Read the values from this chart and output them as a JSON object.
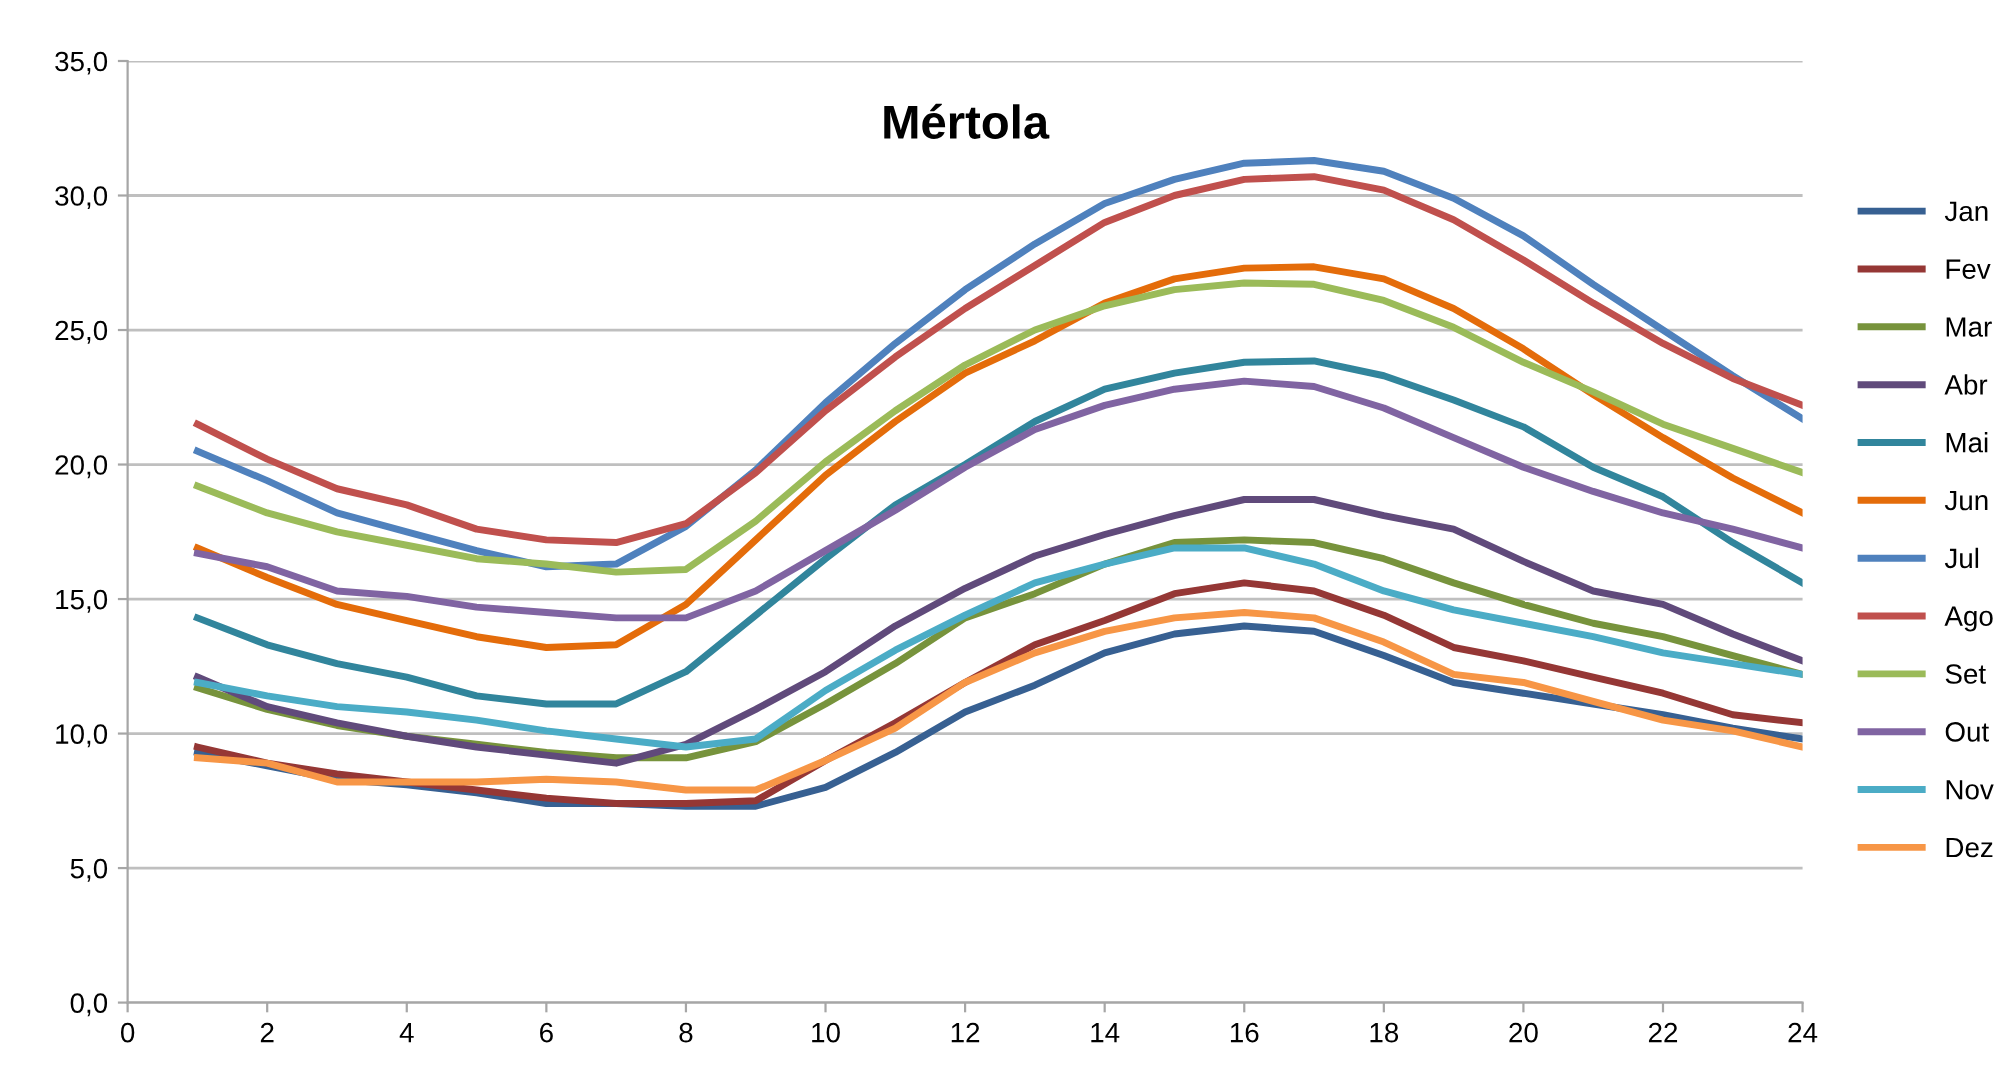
{
  "chart_data": {
    "type": "line",
    "title": "Mértola",
    "x": [
      1,
      2,
      3,
      4,
      5,
      6,
      7,
      8,
      9,
      10,
      11,
      12,
      13,
      14,
      15,
      16,
      17,
      18,
      19,
      20,
      21,
      22,
      23,
      24
    ],
    "xlim": [
      0,
      24
    ],
    "xticks": [
      0,
      2,
      4,
      6,
      8,
      10,
      12,
      14,
      16,
      18,
      20,
      22,
      24
    ],
    "ylim": [
      0,
      35
    ],
    "yticks": [
      {
        "value": 0,
        "label": "0,0"
      },
      {
        "value": 5,
        "label": "5,0"
      },
      {
        "value": 10,
        "label": "10,0"
      },
      {
        "value": 15,
        "label": "15,0"
      },
      {
        "value": 20,
        "label": "20,0"
      },
      {
        "value": 25,
        "label": "25,0"
      },
      {
        "value": 30,
        "label": "30,0"
      },
      {
        "value": 35,
        "label": "35,0"
      }
    ],
    "grid": "y",
    "legend": "right",
    "marker": "none",
    "line_style": "solid",
    "series": [
      {
        "name": "Jan",
        "color": "#376092",
        "values": [
          9.3,
          8.8,
          8.3,
          8.1,
          7.8,
          7.4,
          7.4,
          7.3,
          7.3,
          8.0,
          9.3,
          10.8,
          11.8,
          13.0,
          13.7,
          14.0,
          13.8,
          12.9,
          11.9,
          11.5,
          11.1,
          10.7,
          10.2,
          9.8
        ]
      },
      {
        "name": "Fev",
        "color": "#953735",
        "values": [
          9.5,
          8.9,
          8.5,
          8.2,
          7.9,
          7.6,
          7.4,
          7.4,
          7.5,
          9.0,
          10.4,
          11.9,
          13.3,
          14.2,
          15.2,
          15.6,
          15.3,
          14.4,
          13.2,
          12.7,
          12.1,
          11.5,
          10.7,
          10.4
        ]
      },
      {
        "name": "Mar",
        "color": "#77933c",
        "values": [
          11.7,
          10.9,
          10.3,
          9.9,
          9.6,
          9.3,
          9.1,
          9.1,
          9.7,
          11.1,
          12.6,
          14.3,
          15.2,
          16.3,
          17.1,
          17.2,
          17.1,
          16.5,
          15.6,
          14.8,
          14.1,
          13.6,
          12.9,
          12.2
        ]
      },
      {
        "name": "Abr",
        "color": "#604a7b",
        "values": [
          12.1,
          11.0,
          10.4,
          9.9,
          9.5,
          9.2,
          8.9,
          9.6,
          10.9,
          12.3,
          14.0,
          15.4,
          16.6,
          17.4,
          18.1,
          18.7,
          18.7,
          18.1,
          17.6,
          16.4,
          15.3,
          14.8,
          13.7,
          12.7
        ]
      },
      {
        "name": "Mai",
        "color": "#31859c",
        "values": [
          14.3,
          13.3,
          12.6,
          12.1,
          11.4,
          11.1,
          11.1,
          12.3,
          14.4,
          16.5,
          18.5,
          20.0,
          21.6,
          22.8,
          23.4,
          23.8,
          23.85,
          23.3,
          22.4,
          21.4,
          19.9,
          18.8,
          17.1,
          15.6
        ]
      },
      {
        "name": "Jun",
        "color": "#e46c0a",
        "values": [
          16.9,
          15.8,
          14.8,
          14.2,
          13.6,
          13.2,
          13.3,
          14.8,
          17.2,
          19.6,
          21.6,
          23.4,
          24.6,
          26.0,
          26.9,
          27.3,
          27.35,
          26.9,
          25.8,
          24.3,
          22.6,
          21.0,
          19.5,
          18.2
        ]
      },
      {
        "name": "Jul",
        "color": "#4f81bd",
        "values": [
          20.5,
          19.4,
          18.2,
          17.5,
          16.8,
          16.2,
          16.3,
          17.7,
          19.8,
          22.3,
          24.5,
          26.5,
          28.2,
          29.7,
          30.6,
          31.2,
          31.3,
          30.9,
          29.9,
          28.5,
          26.7,
          25.0,
          23.3,
          21.7
        ]
      },
      {
        "name": "Ago",
        "color": "#c0504d",
        "values": [
          21.5,
          20.2,
          19.1,
          18.5,
          17.6,
          17.2,
          17.1,
          17.8,
          19.7,
          22.0,
          24.0,
          25.8,
          27.4,
          29.0,
          30.0,
          30.6,
          30.7,
          30.2,
          29.1,
          27.6,
          26.0,
          24.5,
          23.2,
          22.2
        ]
      },
      {
        "name": "Set",
        "color": "#9bbb59",
        "values": [
          19.2,
          18.2,
          17.5,
          17.0,
          16.5,
          16.3,
          16.0,
          16.1,
          17.9,
          20.1,
          22.0,
          23.7,
          25.0,
          25.9,
          26.5,
          26.75,
          26.7,
          26.1,
          25.1,
          23.8,
          22.7,
          21.5,
          20.6,
          19.7
        ]
      },
      {
        "name": "Out",
        "color": "#8064a2",
        "values": [
          16.7,
          16.2,
          15.3,
          15.1,
          14.7,
          14.5,
          14.3,
          14.3,
          15.3,
          16.8,
          18.3,
          19.9,
          21.3,
          22.2,
          22.8,
          23.1,
          22.9,
          22.1,
          21.0,
          19.9,
          19.0,
          18.2,
          17.6,
          16.9
        ]
      },
      {
        "name": "Nov",
        "color": "#4bacc6",
        "values": [
          11.9,
          11.4,
          11.0,
          10.8,
          10.5,
          10.1,
          9.8,
          9.5,
          9.8,
          11.6,
          13.1,
          14.4,
          15.6,
          16.3,
          16.9,
          16.9,
          16.3,
          15.3,
          14.6,
          14.1,
          13.6,
          13.0,
          12.6,
          12.2
        ]
      },
      {
        "name": "Dez",
        "color": "#f79646",
        "values": [
          9.1,
          8.9,
          8.2,
          8.2,
          8.2,
          8.3,
          8.2,
          7.9,
          7.9,
          9.0,
          10.2,
          11.9,
          13.0,
          13.8,
          14.3,
          14.5,
          14.3,
          13.4,
          12.2,
          11.9,
          11.2,
          10.5,
          10.1,
          9.5
        ]
      }
    ]
  }
}
